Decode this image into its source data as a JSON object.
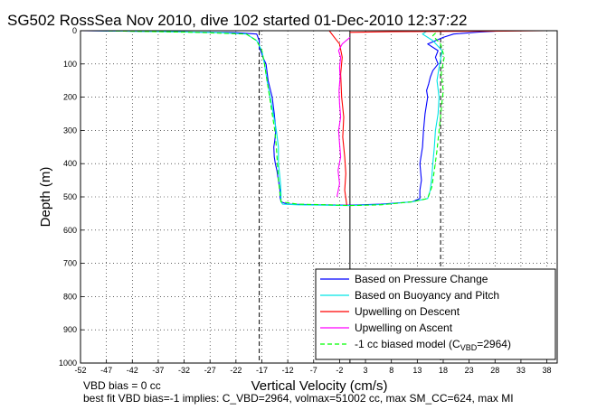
{
  "chart_data": {
    "type": "line",
    "title": "SG502 RossSea Nov 2010, dive 102 started 01-Dec-2010 12:37:22",
    "xlabel": "Vertical Velocity (cm/s)",
    "ylabel": "Depth (m)",
    "xlim": [
      -52,
      40
    ],
    "ylim": [
      1000,
      0
    ],
    "x_ticks": [
      -52,
      -47,
      -42,
      -37,
      -32,
      -27,
      -22,
      -17,
      -12,
      -7,
      -2,
      3,
      8,
      13,
      18,
      23,
      28,
      33,
      38
    ],
    "y_ticks": [
      0,
      100,
      200,
      300,
      400,
      500,
      600,
      700,
      800,
      900,
      1000
    ],
    "grid": true,
    "legend_position": "bottom-right",
    "reference_lines": {
      "solid_vertical_x": 0,
      "dashed_vertical_x": [
        -17.5,
        17.5
      ]
    },
    "series": [
      {
        "name": "Based on Pressure Change",
        "color": "#0000ff",
        "style": "solid",
        "segments": [
          {
            "x": [
              -52,
              -40,
              -30,
              -22,
              -18,
              -17.5,
              -17.5,
              -17,
              -16.8,
              -16.2,
              -15.8,
              -15,
              -14.6,
              -14.3,
              -14.5,
              -14.7,
              -14.6,
              -14.4,
              -14.1,
              -13.9,
              -13.7,
              -13.5,
              -13.5,
              -13.3,
              -12,
              -6,
              0
            ],
            "y": [
              0,
              2,
              4,
              6,
              10,
              30,
              50,
              70,
              80,
              100,
              150,
              200,
              250,
              300,
              330,
              350,
              380,
              400,
              420,
              440,
              460,
              480,
              500,
              515,
              522,
              524,
              525
            ]
          },
          {
            "x": [
              0,
              6,
              12,
              13.5,
              13.5,
              13.8,
              13.5,
              14,
              14.2,
              14.5,
              15,
              14.8,
              15.2,
              15.5,
              16,
              17,
              16.5,
              17,
              15,
              18,
              20,
              25,
              30
            ],
            "y": [
              525,
              522,
              515,
              505,
              480,
              450,
              400,
              350,
              300,
              250,
              200,
              180,
              160,
              140,
              120,
              100,
              80,
              60,
              40,
              20,
              10,
              4,
              0
            ]
          }
        ]
      },
      {
        "name": "Based on Buoyancy and Pitch",
        "color": "#00e5e5",
        "style": "solid",
        "segments": [
          {
            "x": [
              -50,
              -35,
              -25,
              -20,
              -18,
              -17,
              -16.5,
              -16,
              -15.4,
              -14.8,
              -14.2,
              -13.8,
              -13.8,
              -13.6,
              -13.4,
              -13.3,
              -13.3,
              -13,
              -10,
              -5,
              0
            ],
            "y": [
              0,
              3,
              6,
              10,
              30,
              60,
              100,
              150,
              200,
              250,
              300,
              350,
              400,
              430,
              460,
              490,
              515,
              522,
              524,
              525,
              526
            ]
          },
          {
            "x": [
              0,
              6,
              12,
              15,
              15.5,
              15.8,
              16,
              16.3,
              16.5,
              17,
              17.2,
              16.8,
              17.3,
              17.8,
              16,
              14,
              15
            ],
            "y": [
              526,
              523,
              515,
              505,
              480,
              440,
              400,
              350,
              300,
              250,
              200,
              150,
              100,
              60,
              30,
              10,
              0
            ]
          }
        ]
      },
      {
        "name": "Upwelling on Descent",
        "color": "#ff0000",
        "style": "solid",
        "segments": [
          {
            "x": [
              -4,
              -3,
              -2,
              -1.5,
              -1.8,
              -1.6,
              -1.2,
              -1.4,
              -1,
              -0.8,
              -1,
              -0.6
            ],
            "y": [
              0,
              20,
              40,
              80,
              130,
              200,
              260,
              320,
              380,
              430,
              480,
              525
            ]
          },
          {
            "x": [
              0,
              8,
              20,
              30,
              38
            ],
            "y": [
              5,
              3,
              2,
              1,
              0
            ]
          }
        ]
      },
      {
        "name": "Upwelling on Ascent",
        "color": "#ff00ff",
        "style": "solid",
        "segments": [
          {
            "x": [
              -2.5,
              -2,
              -2.3,
              -1.8,
              -2,
              -2.2,
              -1.8,
              -2,
              -2.1,
              -1.9,
              -2,
              -1.8,
              -2.2,
              -1.5,
              0
            ],
            "y": [
              500,
              460,
              420,
              380,
              340,
              300,
              260,
              220,
              180,
              140,
              110,
              80,
              60,
              40,
              20
            ]
          }
        ]
      },
      {
        "name": "-1 cc biased model (C_VBD=2964)",
        "legend_main": "-1 cc biased model (C",
        "legend_sub": "VBD",
        "legend_tail": "=2964)",
        "color": "#00ff00",
        "style": "dashed",
        "segments": [
          {
            "x": [
              -48,
              -30,
              -20,
              -18,
              -17,
              -16.5,
              -16,
              -15.5,
              -15,
              -14.5,
              -14.2,
              -14,
              -13.8,
              -13.5,
              -13.3,
              -10,
              -4,
              0
            ],
            "y": [
              0,
              5,
              10,
              30,
              60,
              100,
              150,
              200,
              250,
              300,
              350,
              400,
              450,
              490,
              515,
              522,
              524,
              526
            ]
          },
          {
            "x": [
              0,
              6,
              12,
              15,
              15.8,
              16.3,
              16.8,
              17.2,
              17.6,
              18,
              17.6,
              18.2,
              17.5,
              16,
              17
            ],
            "y": [
              526,
              524,
              515,
              505,
              470,
              420,
              360,
              300,
              240,
              180,
              130,
              80,
              40,
              15,
              0
            ]
          }
        ]
      }
    ]
  },
  "annotations": {
    "line1": "VBD bias = 0 cc",
    "line2": "best fit VBD bias=-1 implies: C_VBD=2964, volmax=51002 cc, max SM_CC=624, max MI"
  }
}
